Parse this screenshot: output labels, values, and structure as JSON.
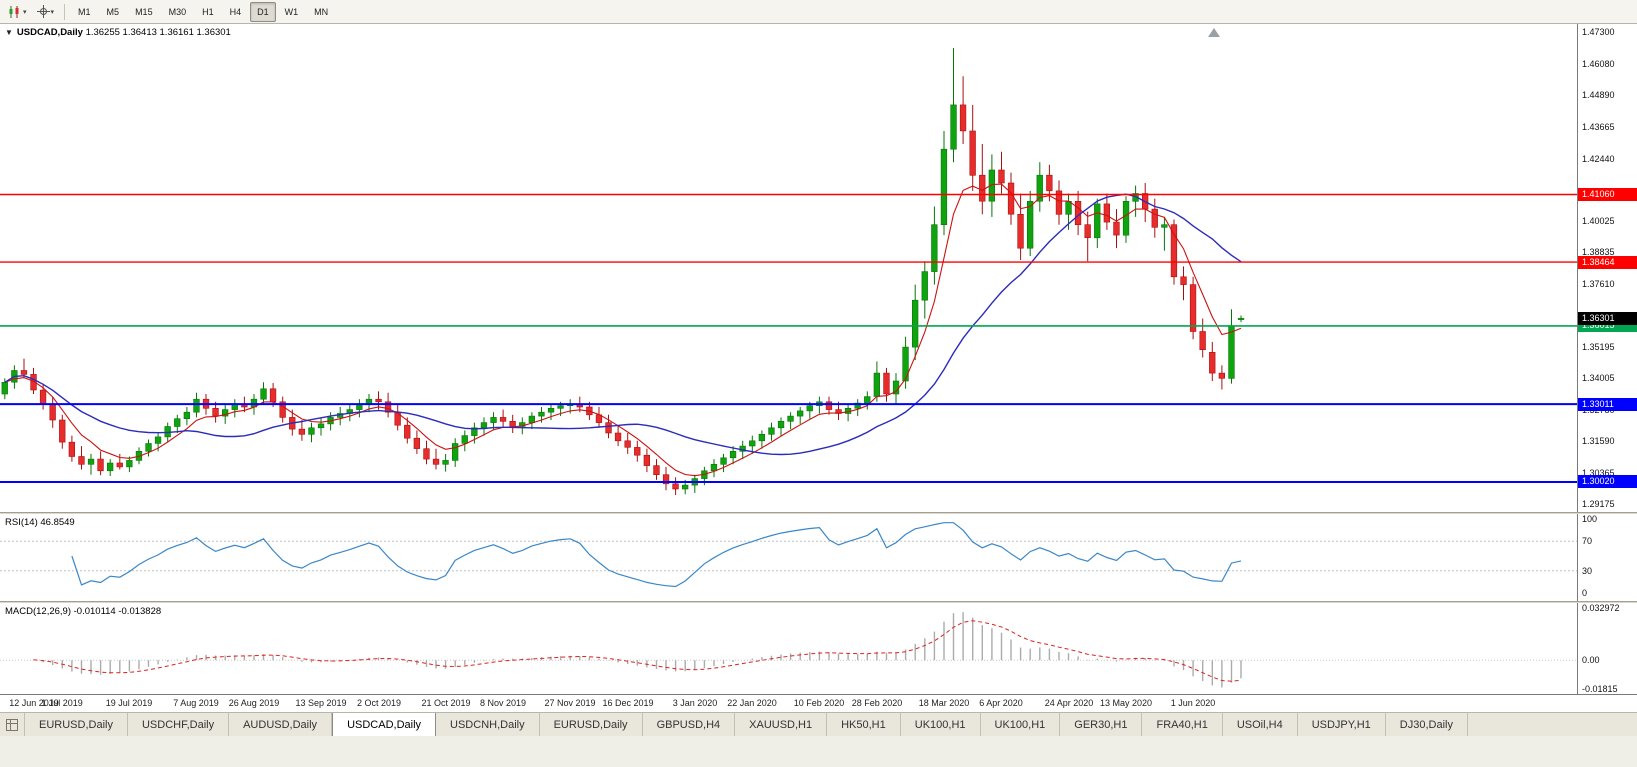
{
  "toolbar": {
    "icons": [
      {
        "name": "chart-type-icon"
      },
      {
        "name": "crosshair-icon"
      }
    ],
    "timeframes": [
      {
        "label": "M1",
        "active": false
      },
      {
        "label": "M5",
        "active": false
      },
      {
        "label": "M15",
        "active": false
      },
      {
        "label": "M30",
        "active": false
      },
      {
        "label": "H1",
        "active": false
      },
      {
        "label": "H4",
        "active": false
      },
      {
        "label": "D1",
        "active": true
      },
      {
        "label": "W1",
        "active": false
      },
      {
        "label": "MN",
        "active": false
      }
    ]
  },
  "chart_data": {
    "type": "candlestick",
    "symbol": "USDCAD",
    "timeframe": "Daily",
    "title_symbol": "USDCAD,Daily",
    "title_ohlc": "1.36255 1.36413 1.36161 1.36301",
    "price_axis": {
      "max": 1.473,
      "min": 1.29175,
      "ticks": [
        "1.47300",
        "1.46080",
        "1.44890",
        "1.43665",
        "1.42440",
        "1.40025",
        "1.38835",
        "1.37610",
        "1.35195",
        "1.34005",
        "1.32780",
        "1.31590",
        "1.30365",
        "1.29175"
      ]
    },
    "candle_colors": {
      "up": "#10a310",
      "up_stroke": "#077507",
      "down": "#e82c2c",
      "down_stroke": "#a80f0f"
    },
    "overlays": {
      "fast_ma": {
        "type": "ema",
        "period": 6,
        "color": "#cc1111"
      },
      "slow_ma": {
        "type": "sma",
        "period": 20,
        "color": "#2b2bbd"
      }
    },
    "hlines": [
      {
        "value": 1.4106,
        "label": "1.41060",
        "color": "#ff0000",
        "width": 1.4
      },
      {
        "value": 1.38464,
        "label": "1.38464",
        "color": "#ff0000",
        "width": 1.4
      },
      {
        "value": 1.36015,
        "label": "1.36015",
        "color": "#00a651",
        "width": 1.6
      },
      {
        "value": 1.33011,
        "label": "1.33011",
        "color": "#0000ff",
        "width": 2
      },
      {
        "value": 1.3002,
        "label": "1.30020",
        "color": "#0000ff",
        "width": 2
      }
    ],
    "current_price": {
      "value": 1.36301,
      "label": "1.36301",
      "badge_color": "#000000"
    },
    "date_labels": [
      {
        "label": "12 Jun 2019",
        "i": 0
      },
      {
        "label": "1 Jul 2019",
        "i": 6
      },
      {
        "label": "19 Jul 2019",
        "i": 13
      },
      {
        "label": "7 Aug 2019",
        "i": 20
      },
      {
        "label": "26 Aug 2019",
        "i": 26
      },
      {
        "label": "13 Sep 2019",
        "i": 33
      },
      {
        "label": "2 Oct 2019",
        "i": 39
      },
      {
        "label": "21 Oct 2019",
        "i": 46
      },
      {
        "label": "8 Nov 2019",
        "i": 52
      },
      {
        "label": "27 Nov 2019",
        "i": 59
      },
      {
        "label": "16 Dec 2019",
        "i": 65
      },
      {
        "label": "3 Jan 2020",
        "i": 72
      },
      {
        "label": "22 Jan 2020",
        "i": 78
      },
      {
        "label": "10 Feb 2020",
        "i": 85
      },
      {
        "label": "28 Feb 2020",
        "i": 91
      },
      {
        "label": "18 Mar 2020",
        "i": 98
      },
      {
        "label": "6 Apr 2020",
        "i": 104
      },
      {
        "label": "24 Apr 2020",
        "i": 111
      },
      {
        "label": "13 May 2020",
        "i": 117
      },
      {
        "label": "1 Jun 2020",
        "i": 124
      }
    ],
    "candles": [
      [
        1.334,
        1.34,
        1.332,
        1.3385
      ],
      [
        1.3385,
        1.345,
        1.336,
        1.343
      ],
      [
        1.343,
        1.3475,
        1.34,
        1.3415
      ],
      [
        1.3415,
        1.344,
        1.334,
        1.3355
      ],
      [
        1.3355,
        1.338,
        1.328,
        1.33
      ],
      [
        1.33,
        1.333,
        1.321,
        1.324
      ],
      [
        1.324,
        1.326,
        1.313,
        1.3155
      ],
      [
        1.3155,
        1.318,
        1.308,
        1.31
      ],
      [
        1.31,
        1.314,
        1.305,
        1.307
      ],
      [
        1.307,
        1.311,
        1.303,
        1.309
      ],
      [
        1.309,
        1.312,
        1.3028,
        1.3045
      ],
      [
        1.3045,
        1.309,
        1.3025,
        1.3075
      ],
      [
        1.3075,
        1.311,
        1.305,
        1.306
      ],
      [
        1.306,
        1.31,
        1.304,
        1.3085
      ],
      [
        1.3085,
        1.3135,
        1.307,
        1.312
      ],
      [
        1.312,
        1.3165,
        1.31,
        1.315
      ],
      [
        1.315,
        1.319,
        1.312,
        1.3175
      ],
      [
        1.3175,
        1.323,
        1.3155,
        1.3215
      ],
      [
        1.3215,
        1.326,
        1.319,
        1.3245
      ],
      [
        1.3245,
        1.329,
        1.322,
        1.327
      ],
      [
        1.327,
        1.3345,
        1.325,
        1.332
      ],
      [
        1.332,
        1.334,
        1.326,
        1.3285
      ],
      [
        1.3285,
        1.331,
        1.323,
        1.3255
      ],
      [
        1.3255,
        1.33,
        1.3225,
        1.328
      ],
      [
        1.328,
        1.332,
        1.325,
        1.33
      ],
      [
        1.33,
        1.333,
        1.327,
        1.329
      ],
      [
        1.329,
        1.334,
        1.326,
        1.332
      ],
      [
        1.332,
        1.3385,
        1.33,
        1.336
      ],
      [
        1.336,
        1.3382,
        1.329,
        1.331
      ],
      [
        1.331,
        1.333,
        1.323,
        1.325
      ],
      [
        1.325,
        1.328,
        1.318,
        1.3205
      ],
      [
        1.3205,
        1.324,
        1.316,
        1.3185
      ],
      [
        1.3185,
        1.323,
        1.3155,
        1.321
      ],
      [
        1.321,
        1.325,
        1.318,
        1.3225
      ],
      [
        1.3225,
        1.327,
        1.32,
        1.325
      ],
      [
        1.325,
        1.329,
        1.322,
        1.3265
      ],
      [
        1.3265,
        1.33,
        1.3235,
        1.328
      ],
      [
        1.328,
        1.332,
        1.325,
        1.33
      ],
      [
        1.33,
        1.334,
        1.327,
        1.332
      ],
      [
        1.332,
        1.335,
        1.328,
        1.331
      ],
      [
        1.331,
        1.3345,
        1.325,
        1.327
      ],
      [
        1.327,
        1.33,
        1.32,
        1.322
      ],
      [
        1.322,
        1.325,
        1.315,
        1.317
      ],
      [
        1.317,
        1.32,
        1.311,
        1.313
      ],
      [
        1.313,
        1.316,
        1.307,
        1.309
      ],
      [
        1.309,
        1.313,
        1.305,
        1.307
      ],
      [
        1.307,
        1.311,
        1.3042,
        1.3085
      ],
      [
        1.3085,
        1.317,
        1.306,
        1.315
      ],
      [
        1.315,
        1.32,
        1.312,
        1.318
      ],
      [
        1.318,
        1.323,
        1.315,
        1.321
      ],
      [
        1.321,
        1.325,
        1.318,
        1.323
      ],
      [
        1.323,
        1.327,
        1.32,
        1.325
      ],
      [
        1.325,
        1.328,
        1.321,
        1.3235
      ],
      [
        1.3235,
        1.326,
        1.319,
        1.3215
      ],
      [
        1.3215,
        1.325,
        1.3185,
        1.323
      ],
      [
        1.323,
        1.327,
        1.3205,
        1.3255
      ],
      [
        1.3255,
        1.329,
        1.323,
        1.327
      ],
      [
        1.327,
        1.33,
        1.324,
        1.3285
      ],
      [
        1.3285,
        1.331,
        1.3255,
        1.3295
      ],
      [
        1.3295,
        1.332,
        1.3265,
        1.33
      ],
      [
        1.33,
        1.333,
        1.327,
        1.329
      ],
      [
        1.329,
        1.331,
        1.324,
        1.326
      ],
      [
        1.326,
        1.329,
        1.321,
        1.323
      ],
      [
        1.323,
        1.326,
        1.317,
        1.319
      ],
      [
        1.319,
        1.322,
        1.314,
        1.316
      ],
      [
        1.316,
        1.319,
        1.311,
        1.3135
      ],
      [
        1.3135,
        1.316,
        1.308,
        1.3105
      ],
      [
        1.3105,
        1.313,
        1.304,
        1.3065
      ],
      [
        1.3065,
        1.309,
        1.301,
        1.303
      ],
      [
        1.303,
        1.306,
        1.297,
        1.2995
      ],
      [
        1.2995,
        1.302,
        1.2952,
        1.2975
      ],
      [
        1.2975,
        1.301,
        1.2955,
        1.299
      ],
      [
        1.299,
        1.303,
        1.296,
        1.3015
      ],
      [
        1.3015,
        1.306,
        1.299,
        1.3045
      ],
      [
        1.3045,
        1.309,
        1.302,
        1.307
      ],
      [
        1.307,
        1.311,
        1.304,
        1.3095
      ],
      [
        1.3095,
        1.314,
        1.307,
        1.312
      ],
      [
        1.312,
        1.316,
        1.309,
        1.314
      ],
      [
        1.314,
        1.318,
        1.311,
        1.316
      ],
      [
        1.316,
        1.32,
        1.313,
        1.3185
      ],
      [
        1.3185,
        1.323,
        1.316,
        1.321
      ],
      [
        1.321,
        1.325,
        1.318,
        1.3235
      ],
      [
        1.3235,
        1.327,
        1.3205,
        1.3255
      ],
      [
        1.3255,
        1.329,
        1.3225,
        1.3275
      ],
      [
        1.3275,
        1.331,
        1.3245,
        1.3295
      ],
      [
        1.3295,
        1.333,
        1.3265,
        1.331
      ],
      [
        1.331,
        1.333,
        1.326,
        1.328
      ],
      [
        1.328,
        1.331,
        1.324,
        1.3265
      ],
      [
        1.3265,
        1.33,
        1.3235,
        1.3285
      ],
      [
        1.3285,
        1.332,
        1.3255,
        1.3305
      ],
      [
        1.3305,
        1.335,
        1.328,
        1.333
      ],
      [
        1.333,
        1.3465,
        1.331,
        1.342
      ],
      [
        1.342,
        1.344,
        1.331,
        1.334
      ],
      [
        1.334,
        1.342,
        1.33,
        1.339
      ],
      [
        1.339,
        1.356,
        1.336,
        1.352
      ],
      [
        1.352,
        1.376,
        1.347,
        1.37
      ],
      [
        1.37,
        1.385,
        1.363,
        1.381
      ],
      [
        1.381,
        1.406,
        1.376,
        1.399
      ],
      [
        1.399,
        1.435,
        1.395,
        1.428
      ],
      [
        1.428,
        1.4668,
        1.423,
        1.445
      ],
      [
        1.445,
        1.456,
        1.43,
        1.435
      ],
      [
        1.435,
        1.445,
        1.412,
        1.418
      ],
      [
        1.418,
        1.43,
        1.403,
        1.408
      ],
      [
        1.408,
        1.426,
        1.402,
        1.42
      ],
      [
        1.42,
        1.427,
        1.411,
        1.415
      ],
      [
        1.415,
        1.419,
        1.399,
        1.403
      ],
      [
        1.403,
        1.411,
        1.3855,
        1.39
      ],
      [
        1.39,
        1.412,
        1.387,
        1.408
      ],
      [
        1.408,
        1.423,
        1.404,
        1.418
      ],
      [
        1.418,
        1.422,
        1.408,
        1.412
      ],
      [
        1.412,
        1.416,
        1.399,
        1.403
      ],
      [
        1.403,
        1.411,
        1.397,
        1.408
      ],
      [
        1.408,
        1.412,
        1.395,
        1.399
      ],
      [
        1.399,
        1.404,
        1.385,
        1.394
      ],
      [
        1.394,
        1.409,
        1.39,
        1.407
      ],
      [
        1.407,
        1.411,
        1.397,
        1.4
      ],
      [
        1.4,
        1.405,
        1.39,
        1.395
      ],
      [
        1.395,
        1.41,
        1.392,
        1.408
      ],
      [
        1.408,
        1.414,
        1.402,
        1.411
      ],
      [
        1.411,
        1.415,
        1.4,
        1.405
      ],
      [
        1.405,
        1.409,
        1.394,
        1.398
      ],
      [
        1.398,
        1.402,
        1.389,
        1.399
      ],
      [
        1.399,
        1.401,
        1.376,
        1.379
      ],
      [
        1.379,
        1.383,
        1.37,
        1.376
      ],
      [
        1.376,
        1.379,
        1.355,
        1.358
      ],
      [
        1.358,
        1.363,
        1.348,
        1.351
      ],
      [
        1.35,
        1.354,
        1.339,
        1.342
      ],
      [
        1.342,
        1.345,
        1.3357,
        1.34
      ],
      [
        1.34,
        1.3665,
        1.338,
        1.36
      ],
      [
        1.36255,
        1.36413,
        1.36161,
        1.36301
      ]
    ],
    "rsi": {
      "label": "RSI(14) 46.8549",
      "color": "#3a87c8",
      "levels": [
        "100",
        "70",
        "30",
        "0"
      ]
    },
    "macd": {
      "label": "MACD(12,26,9) -0.010114 -0.013828",
      "axis": [
        "0.032972",
        "0.00",
        "-0.01815"
      ],
      "max": 0.032972,
      "min": -0.01815,
      "hist_color": "#ababab",
      "signal_color": "#dd2222",
      "zero_color": "#c8c8c8"
    }
  },
  "tabs": [
    {
      "label": "EURUSD,Daily",
      "active": false
    },
    {
      "label": "USDCHF,Daily",
      "active": false
    },
    {
      "label": "AUDUSD,Daily",
      "active": false
    },
    {
      "label": "USDCAD,Daily",
      "active": true
    },
    {
      "label": "USDCNH,Daily",
      "active": false
    },
    {
      "label": "EURUSD,Daily",
      "active": false
    },
    {
      "label": "GBPUSD,H4",
      "active": false
    },
    {
      "label": "XAUUSD,H1",
      "active": false
    },
    {
      "label": "HK50,H1",
      "active": false
    },
    {
      "label": "UK100,H1",
      "active": false
    },
    {
      "label": "UK100,H1",
      "active": false
    },
    {
      "label": "GER30,H1",
      "active": false
    },
    {
      "label": "FRA40,H1",
      "active": false
    },
    {
      "label": "USOil,H4",
      "active": false
    },
    {
      "label": "USDJPY,H1",
      "active": false
    },
    {
      "label": "DJ30,Daily",
      "active": false
    }
  ]
}
